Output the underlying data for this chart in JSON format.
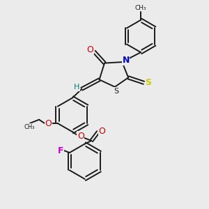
{
  "background_color": "#ebebeb",
  "bond_color": "#1a1a1a",
  "N_color": "#0000cc",
  "O_color": "#cc0000",
  "S_ring_color": "#1a1a1a",
  "S_exo_color": "#cccc00",
  "F_color": "#cc00cc",
  "H_color": "#008080",
  "line_width": 1.4,
  "figsize": [
    3.0,
    3.0
  ],
  "dpi": 100,
  "xlim": [
    0,
    10
  ],
  "ylim": [
    0,
    10
  ]
}
